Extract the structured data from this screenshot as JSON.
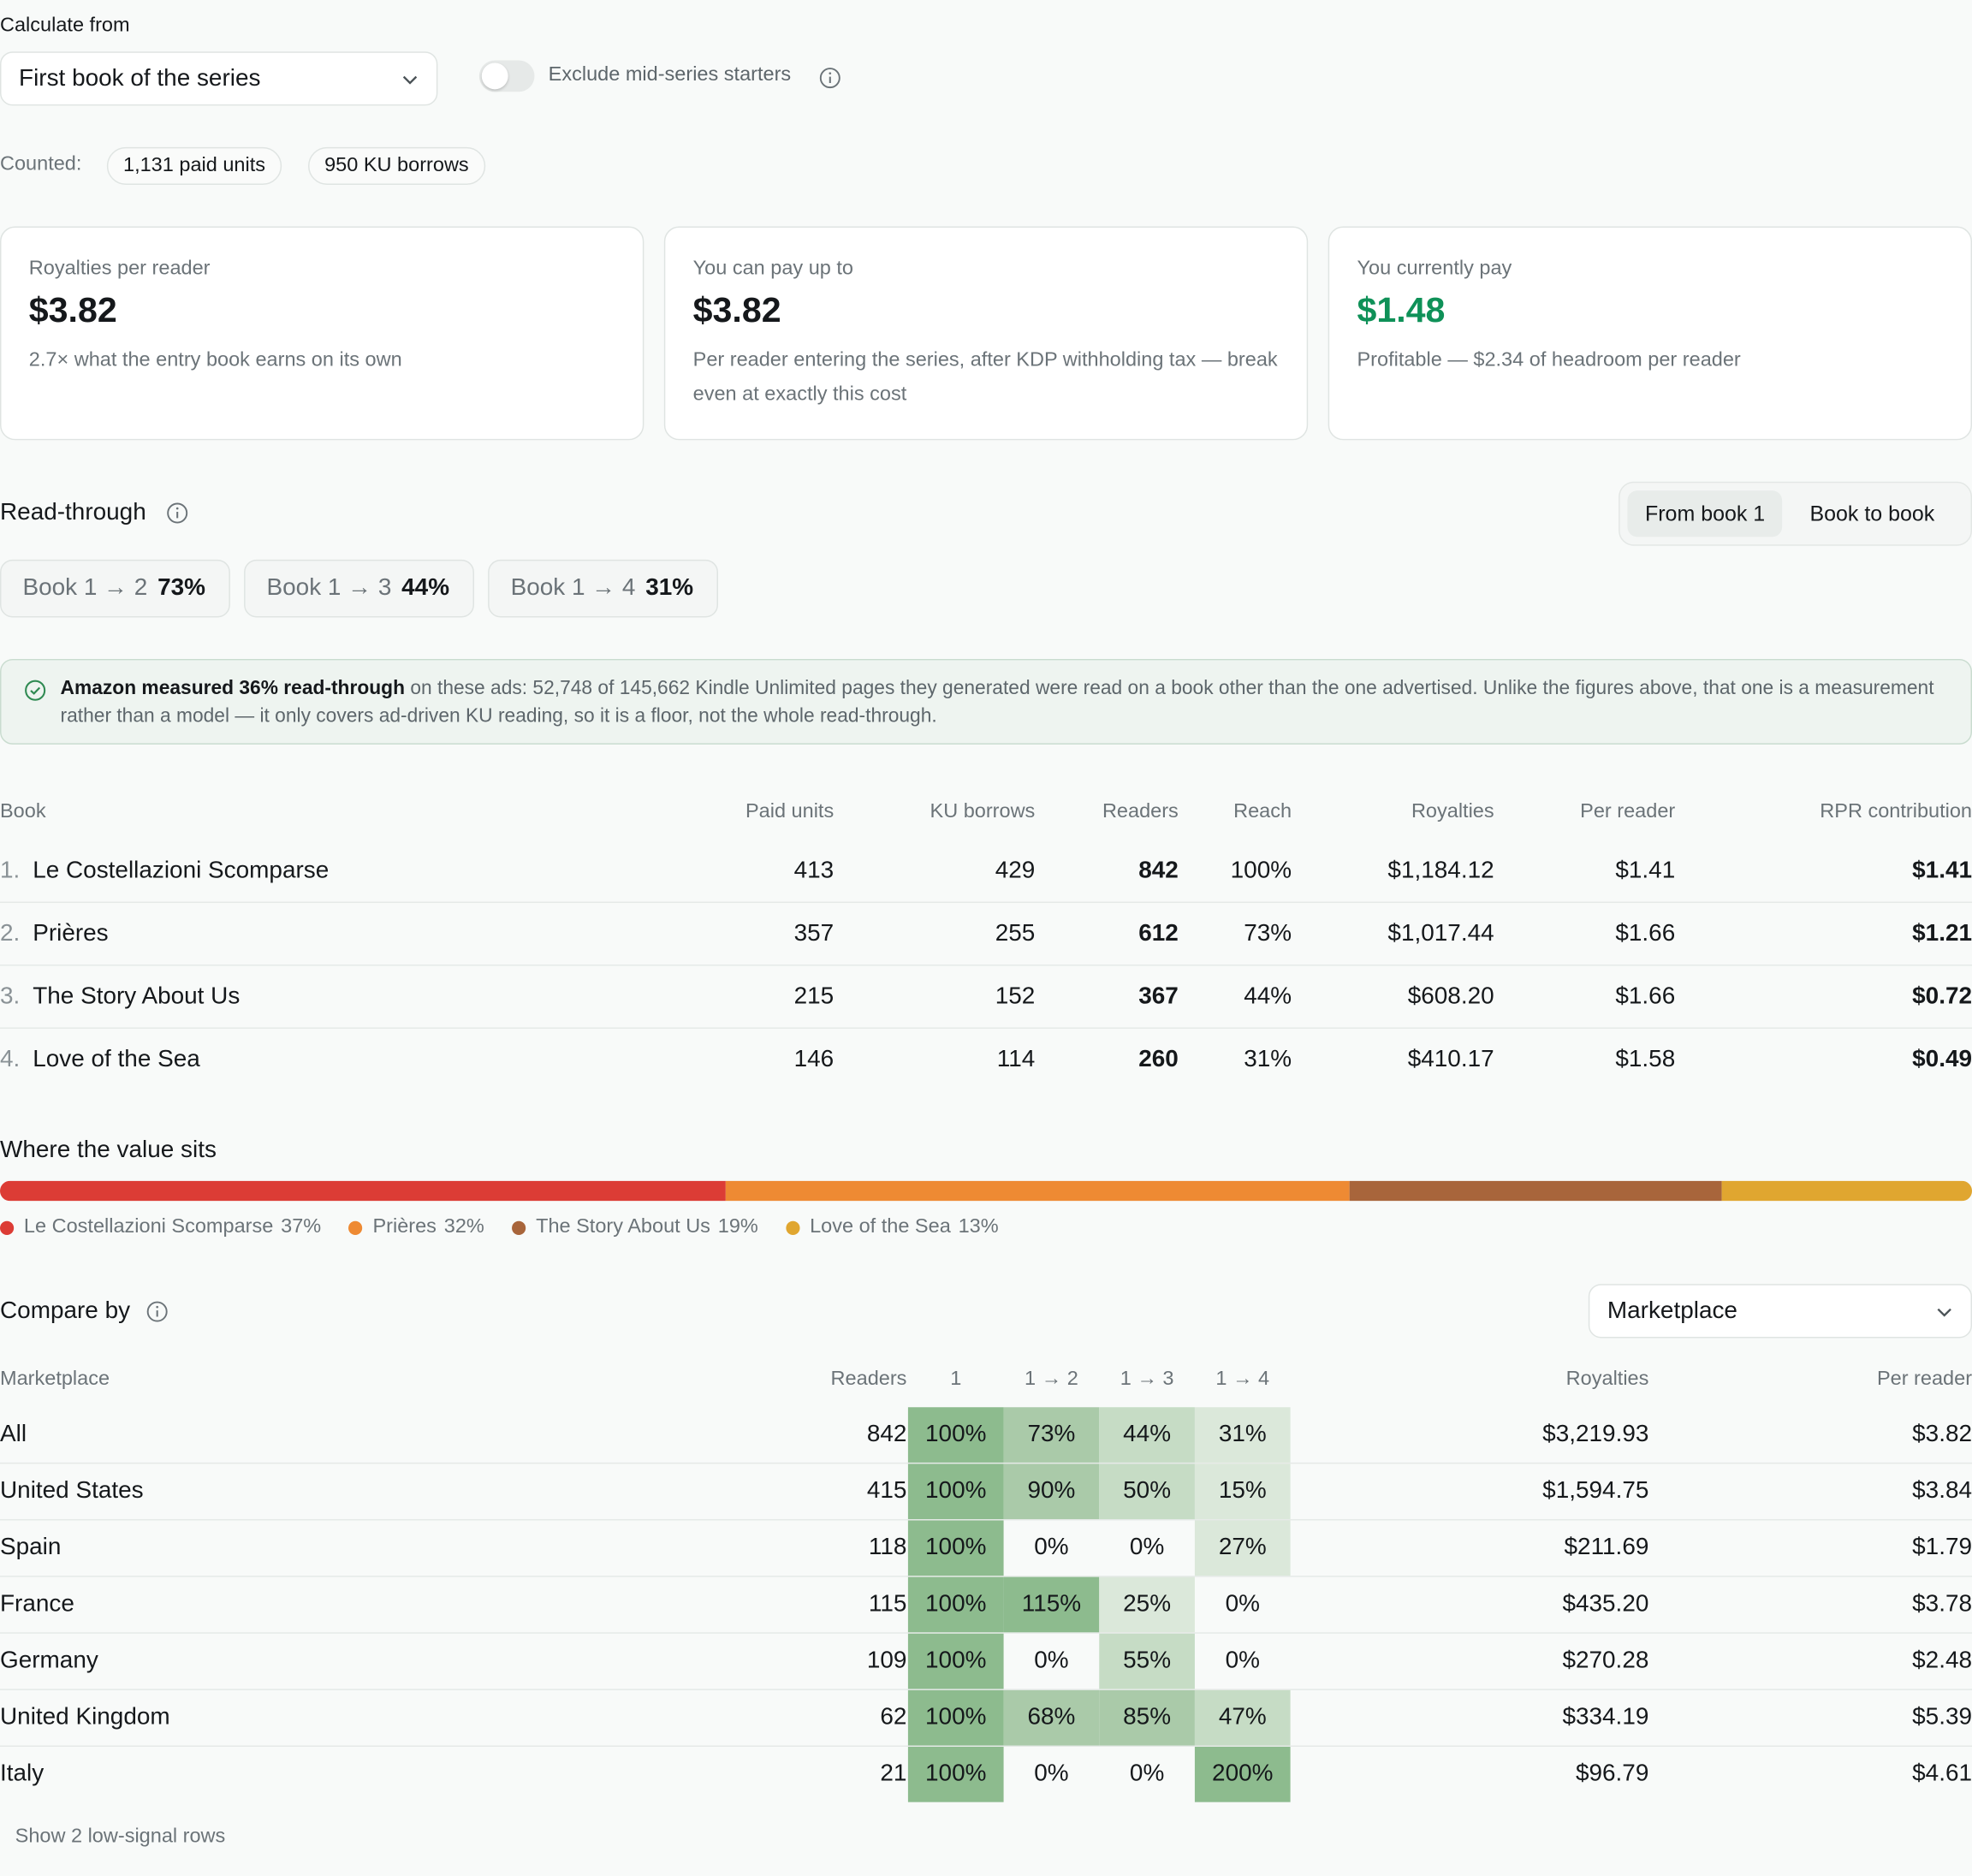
{
  "calc": {
    "label": "Calculate from",
    "select_value": "First book of the series",
    "toggle_label": "Exclude mid-series starters",
    "counted_label": "Counted:",
    "pills": [
      "1,131 paid units",
      "950 KU borrows"
    ]
  },
  "cards": [
    {
      "title": "Royalties per reader",
      "value": "$3.82",
      "sub": "2.7× what the entry book earns on its own"
    },
    {
      "title": "You can pay up to",
      "value": "$3.82",
      "sub": "Per reader entering the series, after KDP withholding tax — break even at exactly this cost"
    },
    {
      "title": "You currently pay",
      "value": "$1.48",
      "sub": "Profitable — $2.34 of headroom per reader"
    }
  ],
  "colors": {
    "accent_green": "#0f9158",
    "heat_strong": "#8dbb8e",
    "heat_mid": "#aacaa9",
    "heat_light": "#c6dcc5",
    "heat_faint": "#dbe8da"
  },
  "readthrough": {
    "title": "Read-through",
    "seg_options": [
      "From book 1",
      "Book to book"
    ],
    "items": [
      {
        "label": "Book 1 → 2",
        "pct": "73%"
      },
      {
        "label": "Book 1 → 3",
        "pct": "44%"
      },
      {
        "label": "Book 1 → 4",
        "pct": "31%"
      }
    ]
  },
  "note": {
    "strong": "Amazon measured 36% read-through",
    "text": " on these ads: 52,748 of 145,662 Kindle Unlimited pages they generated were read on a book other than the one advertised. Unlike the figures above, that one is a measurement rather than a model — it only covers ad-driven KU reading, so it is a floor, not the whole read-through."
  },
  "books_table": {
    "headers": [
      "Book",
      "Paid units",
      "KU borrows",
      "Readers",
      "Reach",
      "Royalties",
      "Per reader",
      "RPR contribution"
    ],
    "rows": [
      {
        "num": "1.",
        "title": "Le Costellazioni Scomparse",
        "paid": "413",
        "ku": "429",
        "readers": "842",
        "reach": "100%",
        "royalties": "$1,184.12",
        "per": "$1.41",
        "rpr": "$1.41"
      },
      {
        "num": "2.",
        "title": "Prières",
        "paid": "357",
        "ku": "255",
        "readers": "612",
        "reach": "73%",
        "royalties": "$1,017.44",
        "per": "$1.66",
        "rpr": "$1.21"
      },
      {
        "num": "3.",
        "title": "The Story About Us",
        "paid": "215",
        "ku": "152",
        "readers": "367",
        "reach": "44%",
        "royalties": "$608.20",
        "per": "$1.66",
        "rpr": "$0.72"
      },
      {
        "num": "4.",
        "title": "Love of the Sea",
        "paid": "146",
        "ku": "114",
        "readers": "260",
        "reach": "31%",
        "royalties": "$410.17",
        "per": "$1.58",
        "rpr": "$0.49"
      }
    ]
  },
  "value": {
    "title": "Where the value sits",
    "segments": [
      {
        "name": "Le Costellazioni Scomparse",
        "pct_label": "37%",
        "share": 36.8,
        "color": "#dc3c35"
      },
      {
        "name": "Prières",
        "pct_label": "32%",
        "share": 31.6,
        "color": "#ee8a33"
      },
      {
        "name": "The Story About Us",
        "pct_label": "19%",
        "share": 18.9,
        "color": "#a8653b"
      },
      {
        "name": "Love of the Sea",
        "pct_label": "13%",
        "share": 12.7,
        "color": "#e0a630"
      }
    ]
  },
  "compare": {
    "title": "Compare by",
    "select_value": "Marketplace",
    "headers": [
      "Marketplace",
      "Readers",
      "1",
      "1 → 2",
      "1 → 3",
      "1 → 4",
      "Royalties",
      "Per reader"
    ],
    "rows": [
      {
        "name": "All",
        "readers": "842",
        "c1": "100%",
        "c2": "73%",
        "c3": "44%",
        "c4": "31%",
        "royalties": "$3,219.93",
        "per": "$3.82"
      },
      {
        "name": "United States",
        "readers": "415",
        "c1": "100%",
        "c2": "90%",
        "c3": "50%",
        "c4": "15%",
        "royalties": "$1,594.75",
        "per": "$3.84"
      },
      {
        "name": "Spain",
        "readers": "118",
        "c1": "100%",
        "c2": "0%",
        "c3": "0%",
        "c4": "27%",
        "royalties": "$211.69",
        "per": "$1.79"
      },
      {
        "name": "France",
        "readers": "115",
        "c1": "100%",
        "c2": "115%",
        "c3": "25%",
        "c4": "0%",
        "royalties": "$435.20",
        "per": "$3.78"
      },
      {
        "name": "Germany",
        "readers": "109",
        "c1": "100%",
        "c2": "0%",
        "c3": "55%",
        "c4": "0%",
        "royalties": "$270.28",
        "per": "$2.48"
      },
      {
        "name": "United Kingdom",
        "readers": "62",
        "c1": "100%",
        "c2": "68%",
        "c3": "85%",
        "c4": "47%",
        "royalties": "$334.19",
        "per": "$5.39"
      },
      {
        "name": "Italy",
        "readers": "21",
        "c1": "100%",
        "c2": "0%",
        "c3": "0%",
        "c4": "200%",
        "royalties": "$96.79",
        "per": "$4.61"
      }
    ],
    "show_more": "Show 2 low-signal rows"
  }
}
